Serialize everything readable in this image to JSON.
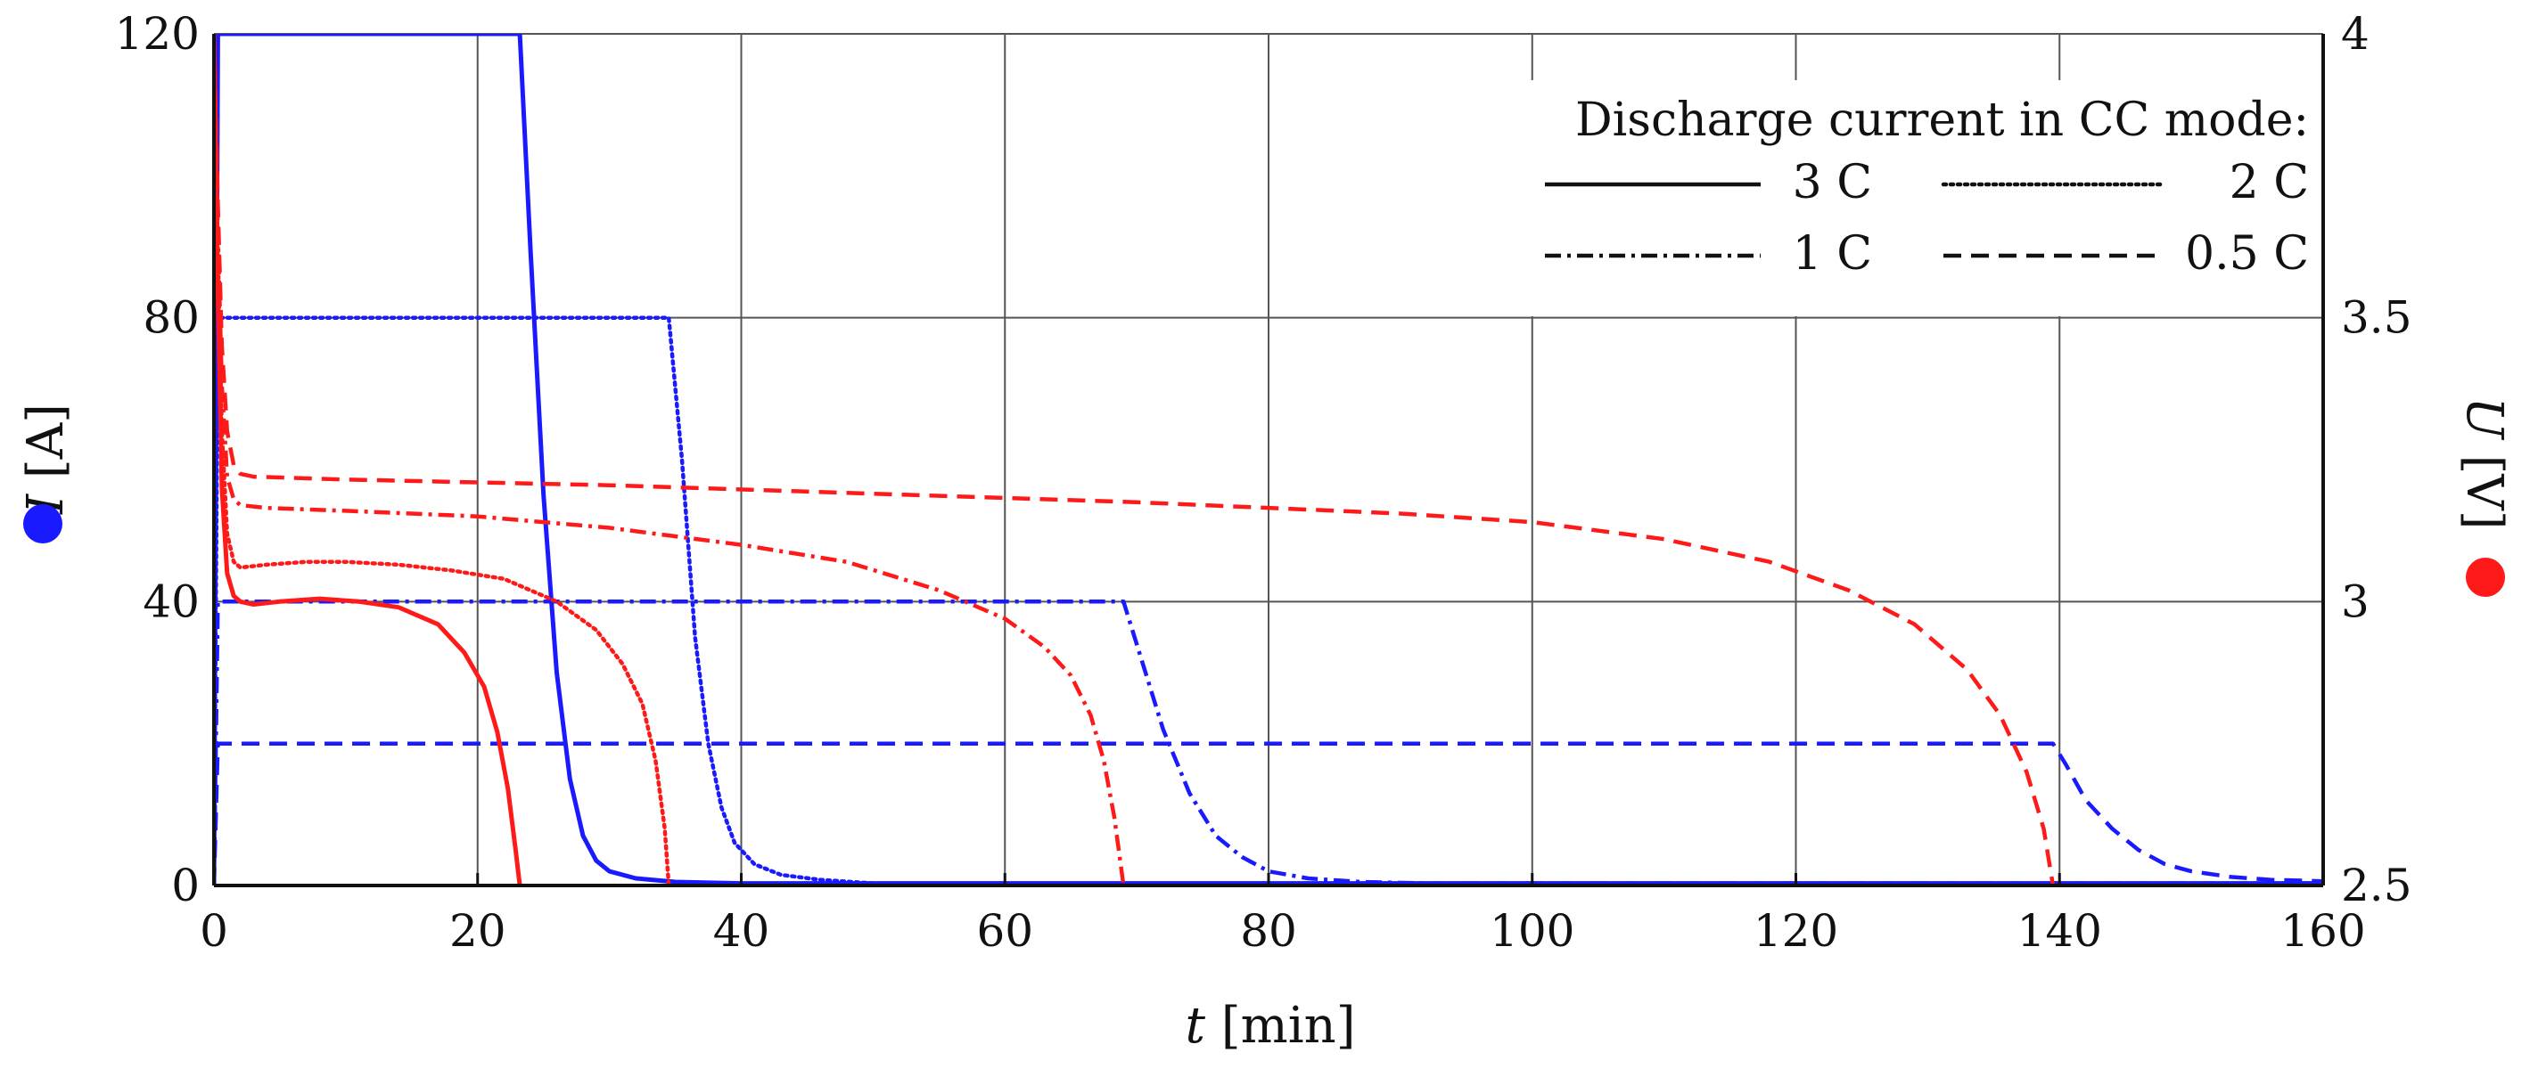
{
  "chart_data": {
    "type": "line",
    "title": "",
    "xlabel": {
      "var": "t",
      "unit": " [min]"
    },
    "ylabel_left": {
      "var": "I",
      "unit": " [A]",
      "color": "#1a1aff"
    },
    "ylabel_right": {
      "var": "U",
      "unit": " [V]",
      "color": "#ff1a1a"
    },
    "xlim": [
      0,
      160
    ],
    "ylim_left": [
      0,
      120
    ],
    "ylim_right": [
      2.5,
      4
    ],
    "x_ticks": [
      "0",
      "20",
      "40",
      "60",
      "80",
      "100",
      "120",
      "140",
      "160"
    ],
    "y_left_ticks": [
      "0",
      "40",
      "80",
      "120"
    ],
    "y_right_ticks": [
      "2.5",
      "3",
      "3.5",
      "4"
    ],
    "grid": true,
    "legend": {
      "title": "Discharge current in CC mode:",
      "position": "top-right",
      "entries": [
        {
          "label": "3 C",
          "style": "solid"
        },
        {
          "label": "2 C",
          "style": "dotted"
        },
        {
          "label": "1 C",
          "style": "dashdot"
        },
        {
          "label": "0.5 C",
          "style": "dashed"
        }
      ]
    },
    "colors": {
      "current": "#1a1aff",
      "voltage": "#ff1a1a",
      "grid": "#555555",
      "axis": "#111111"
    },
    "series": [
      {
        "name": "I 3 C",
        "quantity": "current",
        "rate": "3 C",
        "axis": "left",
        "style": "solid",
        "x": [
          0,
          0.3,
          23.2,
          24,
          25,
          26,
          27,
          28,
          29,
          30,
          32,
          35,
          40,
          160
        ],
        "y": [
          0,
          120,
          120,
          90,
          55,
          30,
          15,
          7,
          3.5,
          2,
          1,
          0.5,
          0.3,
          0.3
        ]
      },
      {
        "name": "I 2 C",
        "quantity": "current",
        "rate": "2 C",
        "axis": "left",
        "style": "dotted",
        "x": [
          0,
          0.3,
          34.5,
          35.5,
          36.5,
          37.5,
          38.5,
          39.5,
          41,
          43,
          46,
          50,
          160
        ],
        "y": [
          0,
          80,
          80,
          60,
          35,
          20,
          11,
          6,
          3,
          1.5,
          0.8,
          0.3,
          0.3
        ]
      },
      {
        "name": "I 1 C",
        "quantity": "current",
        "rate": "1 C",
        "axis": "left",
        "style": "dashdot",
        "x": [
          0,
          0.3,
          69,
          70,
          72,
          74,
          76,
          78,
          80,
          83,
          87,
          92,
          160
        ],
        "y": [
          0,
          40,
          40,
          34,
          22,
          13,
          7,
          4,
          2,
          1,
          0.5,
          0.3,
          0.3
        ]
      },
      {
        "name": "I 0.5 C",
        "quantity": "current",
        "rate": "0.5 C",
        "axis": "left",
        "style": "dashed",
        "x": [
          0,
          0.3,
          139.5,
          140.5,
          142,
          144,
          146,
          148,
          150,
          153,
          156,
          160
        ],
        "y": [
          0,
          20,
          20,
          17,
          12,
          8,
          5,
          3,
          2,
          1.2,
          0.8,
          0.6
        ]
      },
      {
        "name": "U 3 C",
        "quantity": "voltage",
        "rate": "3 C",
        "axis": "right",
        "style": "solid",
        "x": [
          0,
          0.3,
          0.6,
          1,
          1.5,
          2,
          3,
          5,
          8,
          11,
          14,
          17,
          19,
          20.5,
          21.5,
          22.3,
          22.9,
          23.2
        ],
        "y": [
          4.0,
          3.55,
          3.2,
          3.05,
          3.01,
          3.0,
          2.995,
          3.0,
          3.005,
          3.0,
          2.99,
          2.96,
          2.91,
          2.85,
          2.77,
          2.67,
          2.56,
          2.5
        ]
      },
      {
        "name": "U 2 C",
        "quantity": "voltage",
        "rate": "2 C",
        "axis": "right",
        "style": "dotted",
        "x": [
          0,
          0.3,
          0.6,
          1,
          1.5,
          2,
          4,
          7,
          10,
          14,
          18,
          22,
          26,
          29,
          31,
          32.5,
          33.5,
          34.2,
          34.5
        ],
        "y": [
          4.0,
          3.62,
          3.3,
          3.12,
          3.07,
          3.06,
          3.065,
          3.07,
          3.07,
          3.065,
          3.055,
          3.04,
          3.0,
          2.95,
          2.89,
          2.82,
          2.72,
          2.6,
          2.5
        ]
      },
      {
        "name": "U 1 C",
        "quantity": "voltage",
        "rate": "1 C",
        "axis": "right",
        "style": "dashdot",
        "x": [
          0,
          0.3,
          0.6,
          1,
          1.5,
          2,
          4,
          10,
          20,
          30,
          40,
          48,
          55,
          60,
          63,
          65,
          66.5,
          67.5,
          68.3,
          69
        ],
        "y": [
          4.0,
          3.65,
          3.38,
          3.22,
          3.18,
          3.17,
          3.165,
          3.16,
          3.15,
          3.13,
          3.1,
          3.07,
          3.02,
          2.97,
          2.92,
          2.87,
          2.8,
          2.72,
          2.62,
          2.5
        ]
      },
      {
        "name": "U 0.5 C",
        "quantity": "voltage",
        "rate": "0.5 C",
        "axis": "right",
        "style": "dashed",
        "x": [
          0,
          0.3,
          0.6,
          1,
          1.5,
          2,
          3,
          10,
          30,
          50,
          70,
          90,
          100,
          110,
          118,
          124,
          129,
          133,
          135.5,
          137.5,
          138.8,
          139.5
        ],
        "y": [
          4.0,
          3.7,
          3.45,
          3.3,
          3.24,
          3.225,
          3.22,
          3.215,
          3.205,
          3.19,
          3.175,
          3.155,
          3.14,
          3.11,
          3.07,
          3.02,
          2.96,
          2.88,
          2.8,
          2.7,
          2.6,
          2.5
        ]
      }
    ]
  }
}
